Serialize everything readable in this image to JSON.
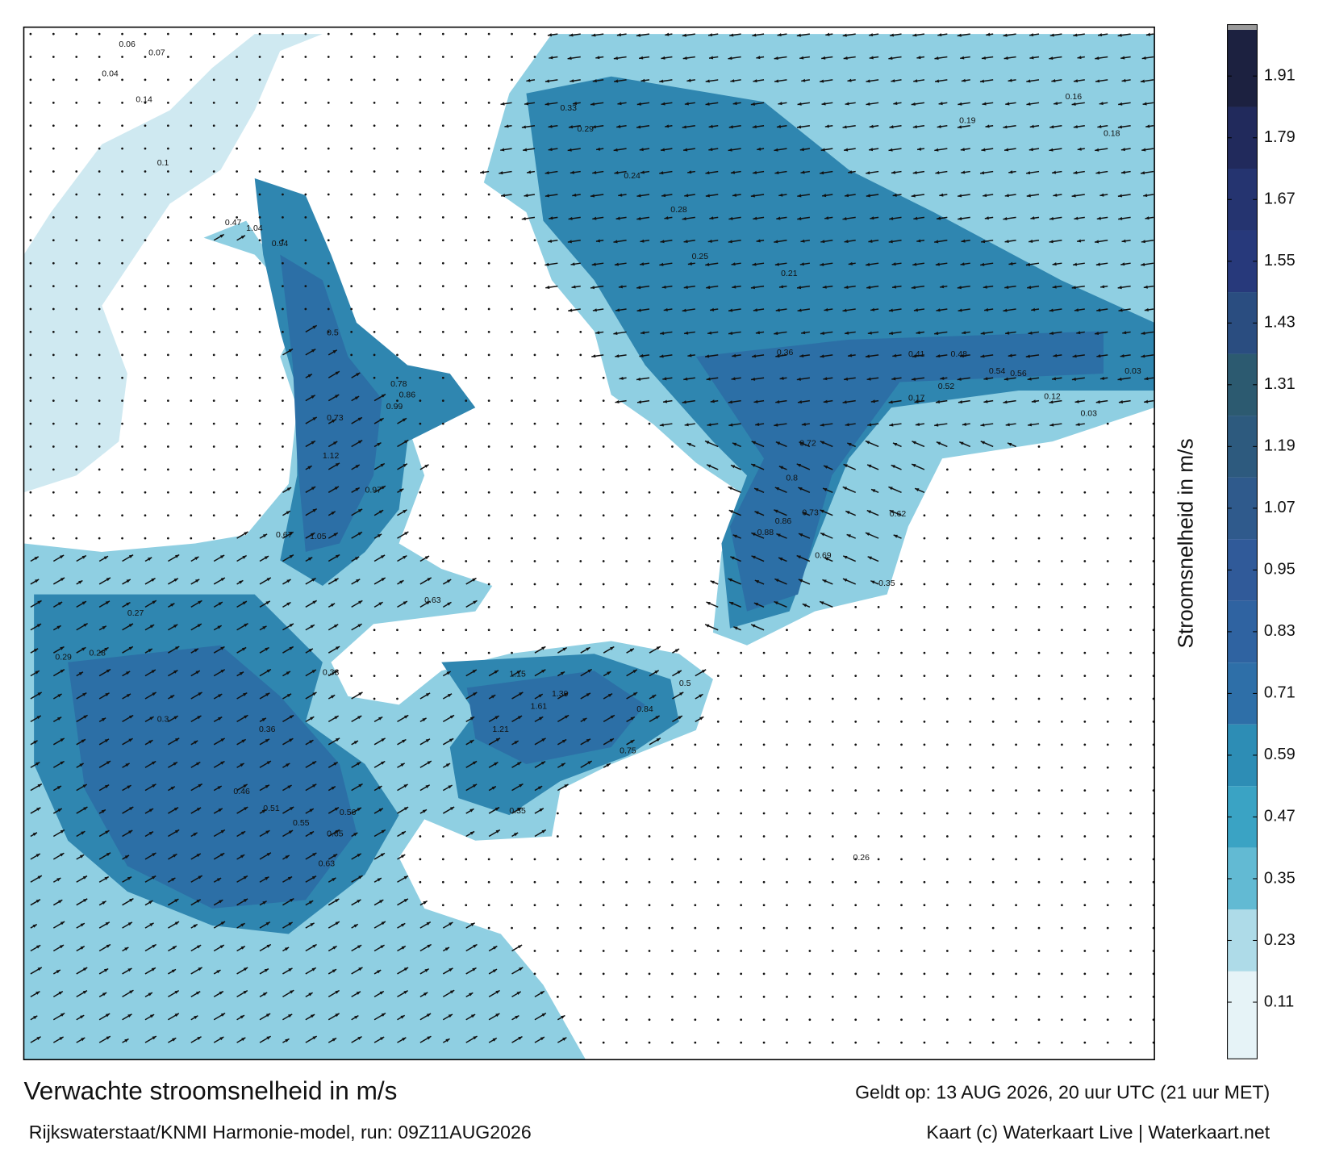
{
  "map": {
    "title": "Verwachte stroomsnelheid in m/s",
    "valid_time": "Geldt op: 13 AUG 2026, 20 uur UTC (21 uur MET)",
    "model_run": "Rijkswaterstaat/KNMI Harmonie-model, run: 09Z11AUG2026",
    "credit": "Kaart (c) Waterkaart Live | Waterkaart.net",
    "speed_labels": [
      "0.06",
      "0.07",
      "0.04",
      "0.14",
      "0.1",
      "0.47",
      "1.04",
      "0.94",
      "0.5",
      "0.86",
      "0.78",
      "0.99",
      "0.73",
      "1.12",
      "0.97",
      "0.67",
      "1.05",
      "0.63",
      "0.27",
      "0.28",
      "0.29",
      "0.3",
      "0.36",
      "0.46",
      "0.51",
      "0.55",
      "0.65",
      "0.56",
      "0.63",
      "0.33",
      "1.15",
      "1.39",
      "1.61",
      "1.21",
      "0.84",
      "0.5",
      "0.75",
      "0.35",
      "0.33",
      "0.29",
      "0.24",
      "0.28",
      "0.25",
      "0.21",
      "0.41",
      "0.48",
      "0.54",
      "0.56",
      "0.52",
      "0.36",
      "0.72",
      "0.8",
      "0.86",
      "0.88",
      "0.73",
      "0.62",
      "0.69",
      "0.35",
      "0.17",
      "0.12",
      "0.03",
      "0.03",
      "0.26",
      "0.18",
      "0.16",
      "0.19"
    ]
  },
  "colorbar": {
    "label": "Stroomsnelheid in m/s",
    "lim": [
      0,
      2
    ],
    "ticks": [
      0.11,
      0.23,
      0.35,
      0.47,
      0.59,
      0.71,
      0.83,
      0.95,
      1.07,
      1.19,
      1.31,
      1.43,
      1.55,
      1.67,
      1.79,
      1.91
    ],
    "colors": [
      "#e6f3f7",
      "#aedbe8",
      "#62bad3",
      "#3aa3c4",
      "#2d8db5",
      "#2e6fa8",
      "#2f63a1",
      "#305a99",
      "#2f5a8c",
      "#2d5a7e",
      "#2c5a70",
      "#2a4d80",
      "#27397b",
      "#253470",
      "#212a5c",
      "#1c2140"
    ]
  }
}
